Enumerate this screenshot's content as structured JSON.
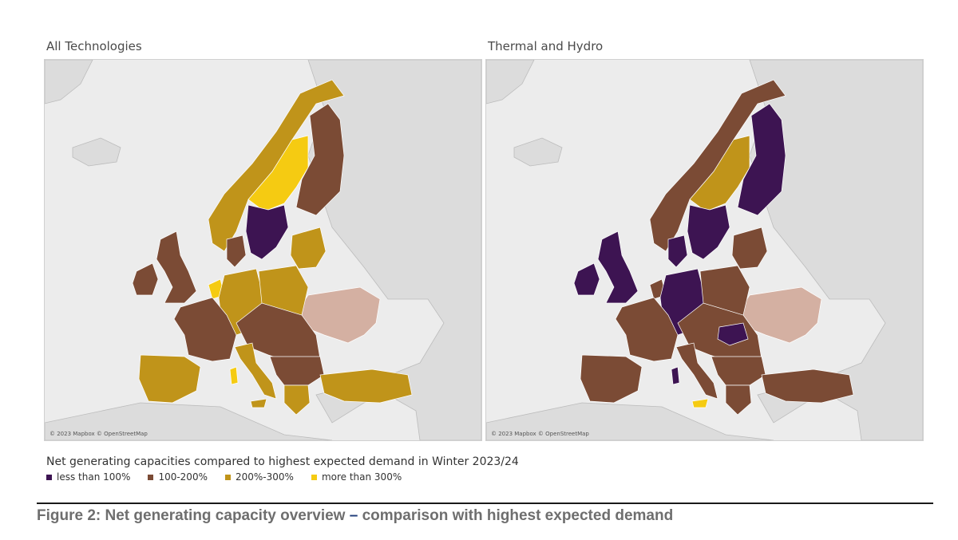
{
  "panels": {
    "left": {
      "title": "All Technologies",
      "attribution": "© 2023 Mapbox © OpenStreetMap"
    },
    "right": {
      "title": "Thermal and Hydro",
      "attribution": "© 2023 Mapbox © OpenStreetMap"
    }
  },
  "legend": {
    "title": "Net generating capacities compared to highest expected demand in Winter 2023/24",
    "items": [
      {
        "label": "less than 100%",
        "color": "#3d1452"
      },
      {
        "label": "100-200%",
        "color": "#7b4b35"
      },
      {
        "label": "200%-300%",
        "color": "#c0941a"
      },
      {
        "label": "more than 300%",
        "color": "#f5cb12"
      }
    ]
  },
  "caption": {
    "prefix": "Figure 2: Net generating capacity overview ",
    "dash": "–",
    "suffix": " comparison with highest expected demand"
  },
  "colors": {
    "sea": "#ececec",
    "land": "#dcdcdc",
    "border": "#bcbcbc",
    "nodata": "#d4b0a2"
  },
  "maps": {
    "left": {
      "regions": {
        "norway": "#c0941a",
        "sweden": "#f5cb12",
        "southsweden": "#3d1452",
        "finland": "#7b4b35",
        "denmark": "#7b4b35",
        "baltics": "#c0941a",
        "uk": "#7b4b35",
        "ireland": "#7b4b35",
        "netherlands": "#f5cb12",
        "germany": "#c0941a",
        "poland": "#c0941a",
        "france": "#7b4b35",
        "iberia": "#c0941a",
        "italy": "#c0941a",
        "centraleast": "#7b4b35",
        "balkans": "#7b4b35",
        "greece": "#c0941a",
        "turkey": "#c0941a",
        "sardinia": "#f5cb12",
        "sicily": "#c0941a",
        "ukraine": "#d4b0a2"
      }
    },
    "right": {
      "regions": {
        "norway": "#7b4b35",
        "sweden": "#c0941a",
        "southsweden": "#3d1452",
        "finland": "#3d1452",
        "denmark": "#3d1452",
        "baltics": "#7b4b35",
        "uk": "#3d1452",
        "ireland": "#3d1452",
        "netherlands": "#7b4b35",
        "germany": "#3d1452",
        "poland": "#7b4b35",
        "france": "#7b4b35",
        "iberia": "#7b4b35",
        "italy": "#7b4b35",
        "centraleast": "#7b4b35",
        "balkans": "#7b4b35",
        "greece": "#7b4b35",
        "turkey": "#7b4b35",
        "sardinia": "#3d1452",
        "sicily": "#f5cb12",
        "ukraine": "#d4b0a2",
        "hungary": "#3d1452"
      }
    }
  }
}
